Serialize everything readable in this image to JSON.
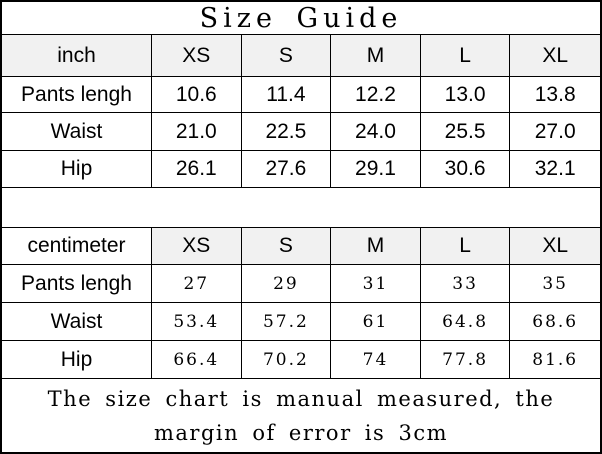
{
  "title": "Size Guide",
  "colors": {
    "border": "#000000",
    "header_bg": "#f1f1f1",
    "background": "#ffffff",
    "text": "#000000"
  },
  "inch_table": {
    "unit_label": "inch",
    "sizes": [
      "XS",
      "S",
      "M",
      "L",
      "XL"
    ],
    "rows": [
      {
        "label": "Pants lengh",
        "values": [
          "10.6",
          "11.4",
          "12.2",
          "13.0",
          "13.8"
        ]
      },
      {
        "label": "Waist",
        "values": [
          "21.0",
          "22.5",
          "24.0",
          "25.5",
          "27.0"
        ]
      },
      {
        "label": "Hip",
        "values": [
          "26.1",
          "27.6",
          "29.1",
          "30.6",
          "32.1"
        ]
      }
    ]
  },
  "cm_table": {
    "unit_label": "centimeter",
    "sizes": [
      "XS",
      "S",
      "M",
      "L",
      "XL"
    ],
    "rows": [
      {
        "label": "Pants lengh",
        "values": [
          "27",
          "29",
          "31",
          "33",
          "35"
        ]
      },
      {
        "label": "Waist",
        "values": [
          "53.4",
          "57.2",
          "61",
          "64.8",
          "68.6"
        ]
      },
      {
        "label": "Hip",
        "values": [
          "66.4",
          "70.2",
          "74",
          "77.8",
          "81.6"
        ]
      }
    ]
  },
  "footer_note": "The size chart is manual measured, the margin of error is 3cm",
  "chart_data": {
    "type": "table",
    "title": "Size Guide",
    "tables": [
      {
        "unit": "inch",
        "columns": [
          "XS",
          "S",
          "M",
          "L",
          "XL"
        ],
        "rows": {
          "Pants lengh": [
            10.6,
            11.4,
            12.2,
            13.0,
            13.8
          ],
          "Waist": [
            21.0,
            22.5,
            24.0,
            25.5,
            27.0
          ],
          "Hip": [
            26.1,
            27.6,
            29.1,
            30.6,
            32.1
          ]
        }
      },
      {
        "unit": "centimeter",
        "columns": [
          "XS",
          "S",
          "M",
          "L",
          "XL"
        ],
        "rows": {
          "Pants lengh": [
            27,
            29,
            31,
            33,
            35
          ],
          "Waist": [
            53.4,
            57.2,
            61,
            64.8,
            68.6
          ],
          "Hip": [
            66.4,
            70.2,
            74,
            77.8,
            81.6
          ]
        }
      }
    ]
  }
}
